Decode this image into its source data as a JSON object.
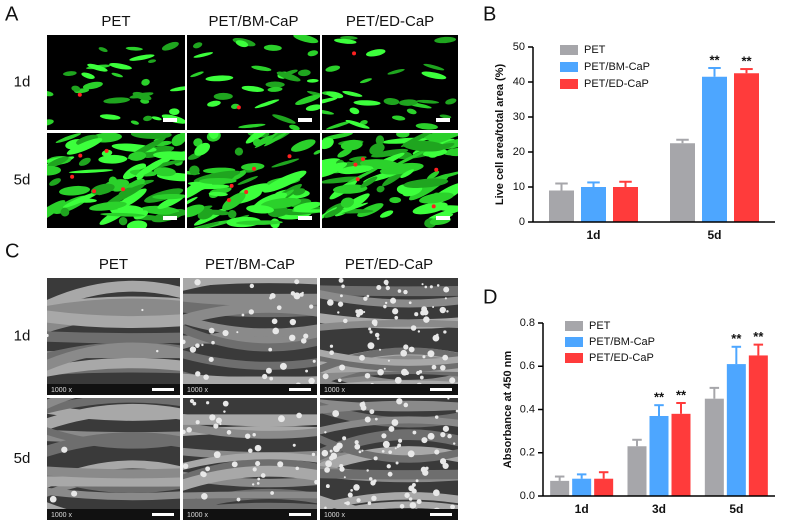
{
  "panels": {
    "A": {
      "label": "A",
      "columns": [
        "PET",
        "PET/BM-CaP",
        "PET/ED-CaP"
      ],
      "rows": [
        "1d",
        "5d"
      ]
    },
    "C": {
      "label": "C",
      "columns": [
        "PET",
        "PET/BM-CaP",
        "PET/ED-CaP"
      ],
      "rows": [
        "1d",
        "5d"
      ],
      "magnification": "1000 x"
    }
  },
  "chart_data": [
    {
      "type": "bar",
      "panel_label": "B",
      "y_label": "Live cell area/total area (%)",
      "categories": [
        "1d",
        "5d"
      ],
      "series": [
        {
          "name": "PET",
          "color": "#a6a6aa",
          "values": [
            9,
            22.5
          ],
          "errors": [
            2,
            1
          ],
          "significance": [
            null,
            null
          ]
        },
        {
          "name": "PET/BM-CaP",
          "color": "#4da6ff",
          "values": [
            10,
            41.5
          ],
          "errors": [
            1.3,
            2.5
          ],
          "significance": [
            null,
            "**"
          ]
        },
        {
          "name": "PET/ED-CaP",
          "color": "#ff3b3b",
          "values": [
            10,
            42.5
          ],
          "errors": [
            1.5,
            1.2
          ],
          "significance": [
            null,
            "**"
          ]
        }
      ],
      "ylim": [
        0,
        50
      ],
      "yticks": [
        0,
        10,
        20,
        30,
        40,
        50
      ],
      "legend": "upper-left"
    },
    {
      "type": "bar",
      "panel_label": "D",
      "y_label": "Absorbance at 450 nm",
      "categories": [
        "1d",
        "3d",
        "5d"
      ],
      "series": [
        {
          "name": "PET",
          "color": "#a6a6aa",
          "values": [
            0.07,
            0.23,
            0.45
          ],
          "errors": [
            0.02,
            0.03,
            0.05
          ],
          "significance": [
            null,
            null,
            null
          ]
        },
        {
          "name": "PET/BM-CaP",
          "color": "#4da6ff",
          "values": [
            0.08,
            0.37,
            0.61
          ],
          "errors": [
            0.02,
            0.05,
            0.08
          ],
          "significance": [
            null,
            "**",
            "**"
          ]
        },
        {
          "name": "PET/ED-CaP",
          "color": "#ff3b3b",
          "values": [
            0.08,
            0.38,
            0.65
          ],
          "errors": [
            0.03,
            0.05,
            0.05
          ],
          "significance": [
            null,
            "**",
            "**"
          ]
        }
      ],
      "ylim": [
        0,
        0.8
      ],
      "yticks": [
        {
          "value": 0,
          "label": "0.0"
        },
        0.2,
        0.4,
        0.6,
        0.8
      ],
      "legend": "upper-left"
    }
  ]
}
